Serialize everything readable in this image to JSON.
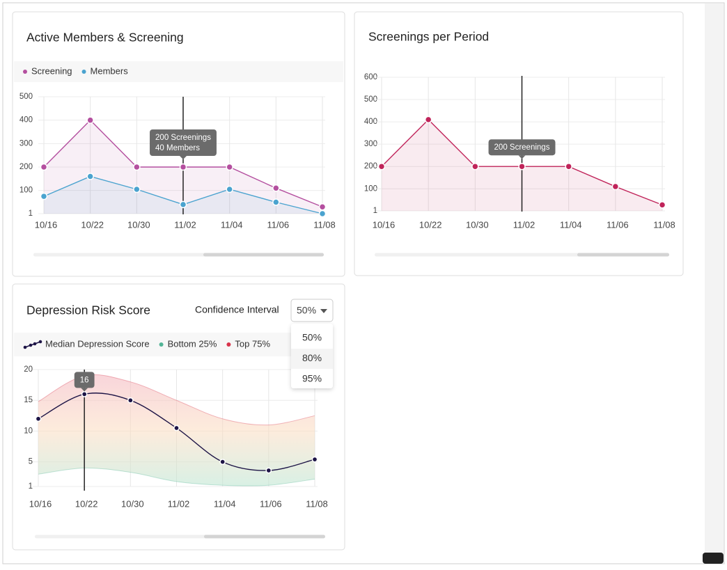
{
  "chart_data": [
    {
      "type": "line",
      "title": "Active Members & Screening",
      "categories": [
        "10/16",
        "10/22",
        "10/30",
        "11/02",
        "11/04",
        "11/06",
        "11/08"
      ],
      "series": [
        {
          "name": "Screening",
          "color": "#b44f9f",
          "values": [
            200,
            400,
            200,
            200,
            200,
            110,
            30
          ]
        },
        {
          "name": "Members",
          "color": "#4aa3cf",
          "values": [
            75,
            160,
            105,
            40,
            105,
            50,
            1
          ]
        }
      ],
      "ylim": [
        1,
        500
      ],
      "yticks": [
        1,
        100,
        200,
        300,
        400,
        500
      ],
      "grid": true,
      "area": true,
      "highlight_index": 3,
      "tooltip": [
        "200 Screenings",
        "40 Members"
      ]
    },
    {
      "type": "line",
      "title": "Screenings per Period",
      "categories": [
        "10/16",
        "10/22",
        "10/30",
        "11/02",
        "11/04",
        "11/06",
        "11/08"
      ],
      "series": [
        {
          "name": "Screenings",
          "color": "#c0245a",
          "values": [
            200,
            410,
            200,
            200,
            200,
            110,
            28
          ]
        }
      ],
      "ylim": [
        1,
        600
      ],
      "yticks": [
        1,
        100,
        200,
        300,
        400,
        500,
        600
      ],
      "grid": true,
      "area": true,
      "legend": false,
      "highlight_index": 3,
      "tooltip": [
        "200 Screenings"
      ]
    },
    {
      "type": "line",
      "title": "Depression Risk Score",
      "categories": [
        "10/16",
        "10/22",
        "10/30",
        "11/02",
        "11/04",
        "11/06",
        "11/08"
      ],
      "series": [
        {
          "name": "Median Depression Score",
          "color": "#1d1446",
          "values": [
            12,
            16,
            15,
            10.5,
            5,
            3.6,
            5.4
          ]
        },
        {
          "name": "Bottom 25%",
          "color": "#52b496",
          "values": [
            3,
            4,
            3.3,
            1.8,
            1.2,
            1.2,
            2.2
          ]
        },
        {
          "name": "Top 75%",
          "color": "#d8344b",
          "values": [
            14.8,
            19,
            18,
            15,
            12,
            11,
            12.5
          ]
        }
      ],
      "ylim": [
        1,
        20
      ],
      "yticks": [
        1,
        5,
        10,
        15,
        20
      ],
      "grid": true,
      "area": "band",
      "smooth": true,
      "highlight_index": 1
    }
  ],
  "controls": {
    "label": "Confidence Interval",
    "selected": "50%",
    "options": [
      "50%",
      "80%",
      "95%"
    ],
    "hovered": "80%"
  }
}
